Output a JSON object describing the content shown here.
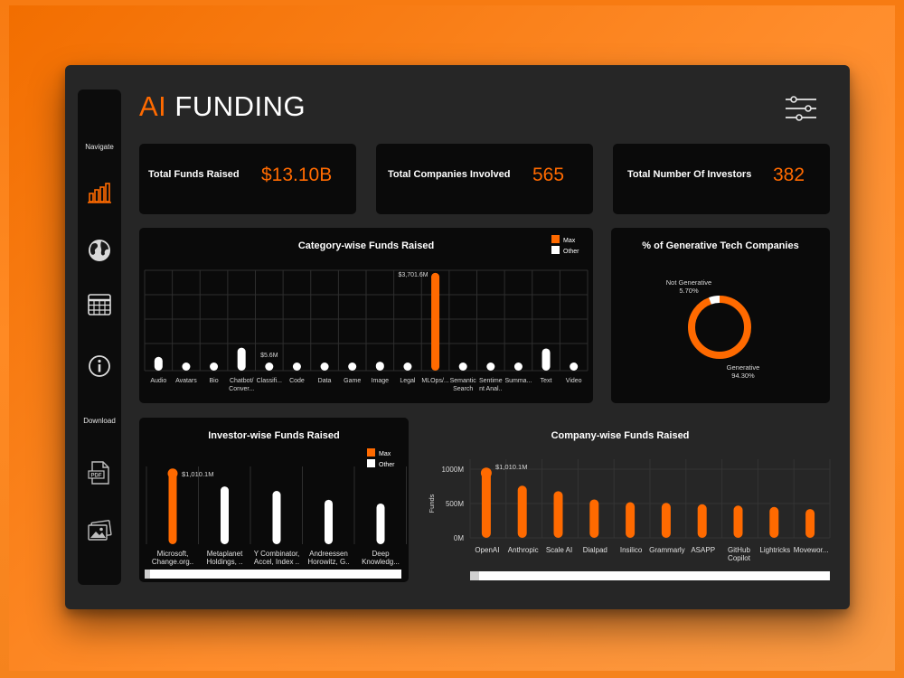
{
  "header": {
    "title_accent": "AI",
    "title_rest": "FUNDING"
  },
  "sidebar": {
    "navigate_label": "Navigate",
    "download_label": "Download"
  },
  "kpis": [
    {
      "label": "Total Funds Raised",
      "value": "$13.10B"
    },
    {
      "label": "Total Companies Involved",
      "value": "565"
    },
    {
      "label": "Total Number Of Investors",
      "value": "382"
    }
  ],
  "colors": {
    "accent": "#ff6a00",
    "card": "#0a0a0a",
    "panel": "#262626",
    "other": "#ffffff"
  },
  "legend": {
    "max": "Max",
    "other": "Other"
  },
  "chart_data": [
    {
      "type": "bar",
      "title": "Category-wise Funds Raised",
      "categories": [
        "Audio",
        "Avatars",
        "Bio",
        "Chatbot/ Conver...",
        "Classifi...",
        "Code",
        "Data",
        "Game",
        "Image",
        "Legal",
        "MLOps/...",
        "Semantic Search",
        "Sentime nt Anal...",
        "Summa...",
        "Text",
        "Video"
      ],
      "category_lines": [
        [
          "Audio"
        ],
        [
          "Avatars"
        ],
        [
          "Bio"
        ],
        [
          "Chatbot/",
          "Conver..."
        ],
        [
          "Classifi..."
        ],
        [
          "Code"
        ],
        [
          "Data"
        ],
        [
          "Game"
        ],
        [
          "Image"
        ],
        [
          "Legal"
        ],
        [
          "MLOps/..."
        ],
        [
          "Semantic",
          "Search"
        ],
        [
          "Sentime",
          "nt Anal.."
        ],
        [
          "Summa..."
        ],
        [
          "Text"
        ],
        [
          "Video"
        ]
      ],
      "values": [
        520,
        260,
        265,
        870,
        5.6,
        290,
        220,
        120,
        340,
        155,
        3701.6,
        190,
        110,
        200,
        840,
        240
      ],
      "highlight": [
        "other",
        "other",
        "other",
        "other",
        "other",
        "other",
        "other",
        "other",
        "other",
        "other",
        "max",
        "other",
        "other",
        "other",
        "other",
        "other"
      ],
      "annotations": [
        {
          "category": "MLOps/...",
          "text": "$3,701.6M"
        },
        {
          "category": "Classifi...",
          "text": "$5.6M"
        }
      ],
      "ylim": [
        0,
        3800
      ],
      "grid": true,
      "legend_position": "top-right"
    },
    {
      "type": "pie",
      "title": "% of Generative Tech Companies",
      "slices": [
        {
          "name": "Generative",
          "value": 94.3,
          "label": "94.30%"
        },
        {
          "name": "Not Generative",
          "value": 5.7,
          "label": "5.70%"
        }
      ],
      "donut": true
    },
    {
      "type": "bar",
      "title": "Investor-wise Funds Raised",
      "categories": [
        "Microsoft, Change.org..",
        "Metaplanet Holdings, ..",
        "Y Combinator, Accel, Index ..",
        "Andreessen Horowitz, G..",
        "Deep Knowledg..."
      ],
      "category_lines": [
        [
          "Microsoft,",
          "Change.org.."
        ],
        [
          "Metaplanet",
          "Holdings, .."
        ],
        [
          "Y Combinator,",
          "Accel, Index .."
        ],
        [
          "Andreessen",
          "Horowitz, G.."
        ],
        [
          "Deep",
          "Knowledg..."
        ]
      ],
      "values": [
        1010.1,
        780,
        720,
        600,
        550
      ],
      "highlight": [
        "max",
        "other",
        "other",
        "other",
        "other"
      ],
      "annotations": [
        {
          "category": "Microsoft, Change.org..",
          "text": "$1,010.1M"
        }
      ],
      "ylim": [
        0,
        1050
      ],
      "grid": true,
      "legend_position": "top-right"
    },
    {
      "type": "bar",
      "title": "Company-wise Funds Raised",
      "categories": [
        "OpenAI",
        "Anthropic",
        "Scale AI",
        "Dialpad",
        "Insilico",
        "Grammarly",
        "ASAPP",
        "GitHub Copilot",
        "Lightricks",
        "Movewor..."
      ],
      "category_lines": [
        [
          "OpenAI"
        ],
        [
          "Anthropic"
        ],
        [
          "Scale AI"
        ],
        [
          "Dialpad"
        ],
        [
          "Insilico"
        ],
        [
          "Grammarly"
        ],
        [
          "ASAPP"
        ],
        [
          "GitHub",
          "Copilot"
        ],
        [
          "Lightricks"
        ],
        [
          "Movewor..."
        ]
      ],
      "values": [
        1010.1,
        760,
        680,
        560,
        520,
        510,
        490,
        470,
        450,
        420
      ],
      "annotations": [
        {
          "category": "OpenAI",
          "text": "$1,010.1M"
        }
      ],
      "ylabel": "Funds",
      "y_ticks": [
        "0M",
        "500M",
        "1000M"
      ],
      "y_tick_values": [
        0,
        500,
        1000
      ],
      "ylim": [
        0,
        1000
      ],
      "grid": true
    }
  ]
}
